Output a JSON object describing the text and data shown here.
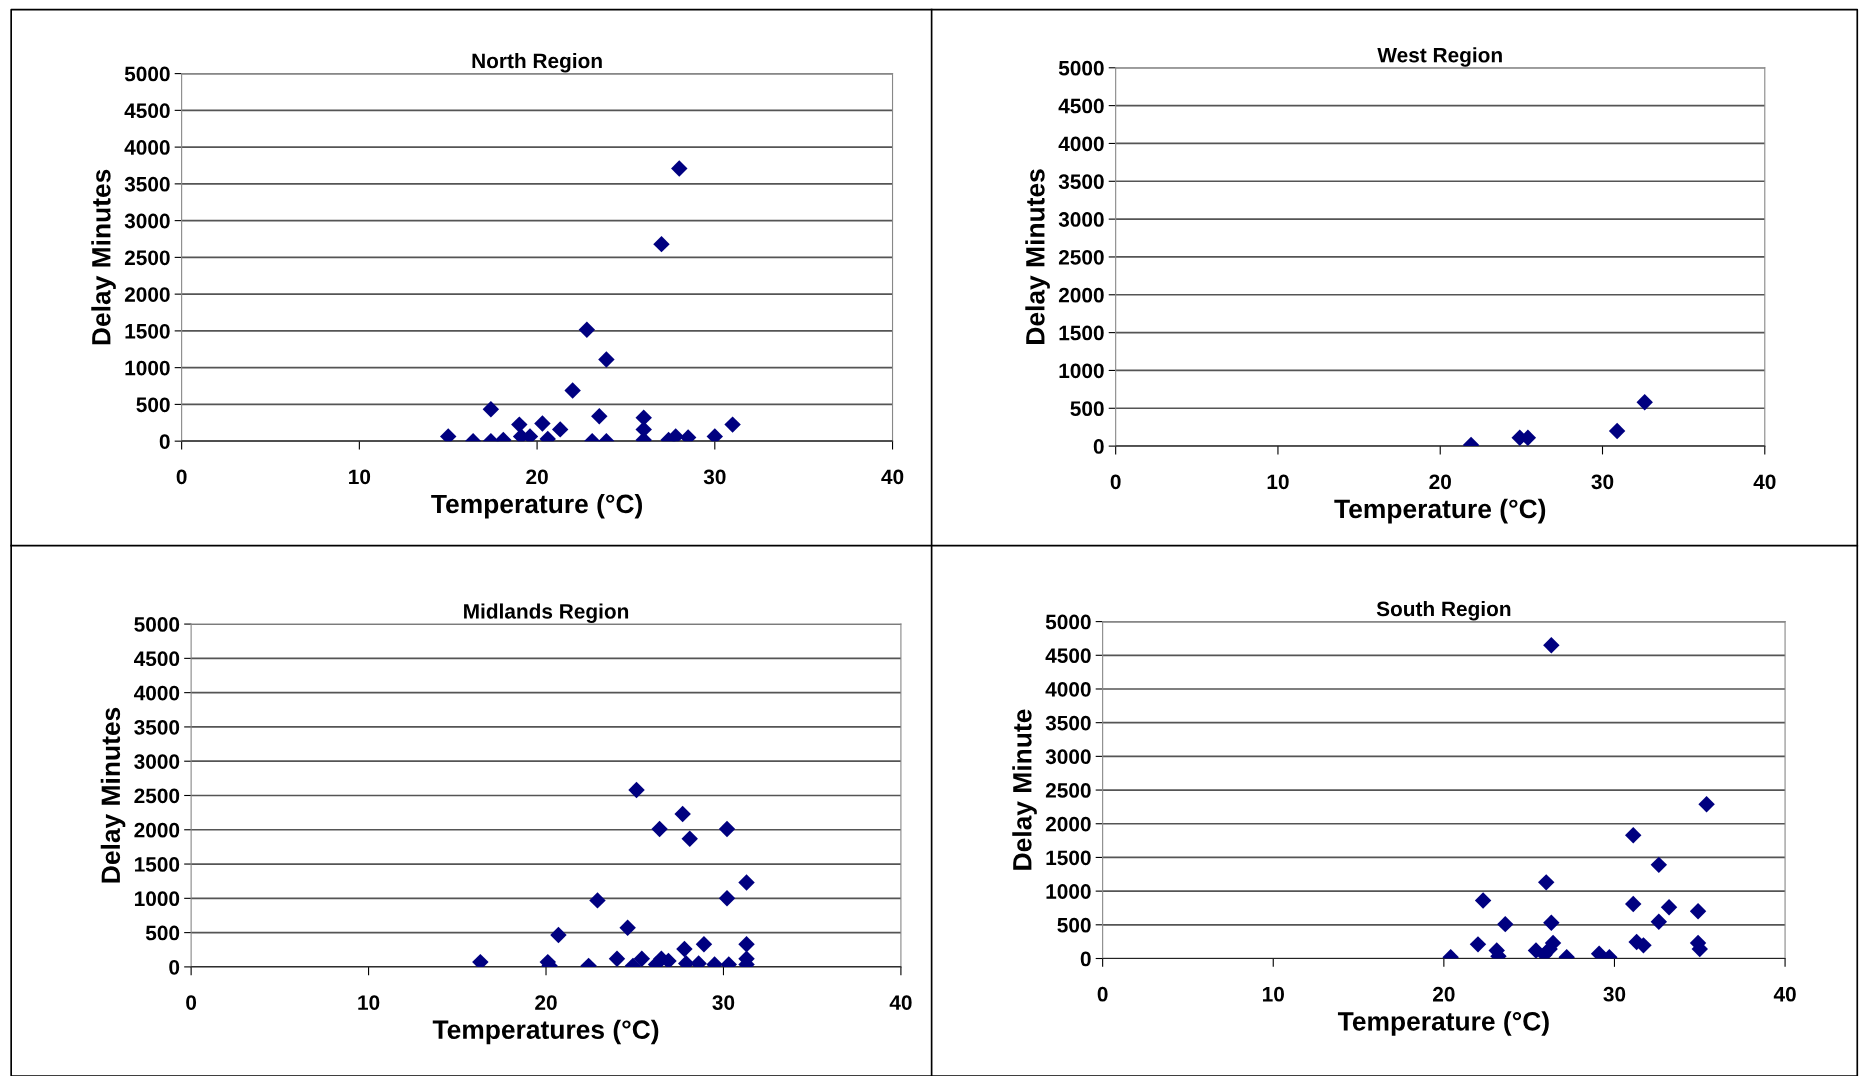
{
  "chart_data": [
    {
      "type": "scatter",
      "title": "North Region",
      "xlabel": "Temperature (°C)",
      "ylabel": "Delay Minutes",
      "color": "#000080",
      "marker": "diamond",
      "grid": "y",
      "xlim": [
        0,
        40
      ],
      "ylim": [
        0,
        5000
      ],
      "xticks": [
        0,
        10,
        20,
        30,
        40
      ],
      "yticks": [
        0,
        500,
        1000,
        1500,
        2000,
        2500,
        3000,
        3500,
        4000,
        4500,
        5000
      ],
      "x": [
        15.0,
        16.4,
        17.4,
        17.4,
        18.1,
        19.0,
        19.1,
        19.6,
        20.3,
        20.6,
        21.3,
        22.0,
        22.8,
        23.1,
        23.5,
        23.9,
        23.9,
        26.0,
        26.0,
        26.0,
        27.0,
        27.4,
        27.8,
        28.0,
        28.5,
        30.0,
        31.0
      ],
      "values": [
        65,
        0,
        0,
        435,
        15,
        225,
        65,
        65,
        240,
        30,
        160,
        690,
        1515,
        0,
        340,
        1110,
        0,
        320,
        160,
        15,
        2680,
        15,
        65,
        3710,
        50,
        65,
        225
      ]
    },
    {
      "type": "scatter",
      "title": "West Region",
      "xlabel": "Temperature (°C)",
      "ylabel": "Delay Minutes",
      "color": "#000080",
      "marker": "diamond",
      "grid": "y",
      "xlim": [
        0,
        40
      ],
      "ylim": [
        0,
        5000
      ],
      "xticks": [
        0,
        10,
        20,
        30,
        40
      ],
      "yticks": [
        0,
        500,
        1000,
        1500,
        2000,
        2500,
        3000,
        3500,
        4000,
        4500,
        5000
      ],
      "x": [
        21.9,
        24.9,
        25.4,
        30.9,
        32.6
      ],
      "values": [
        15,
        110,
        110,
        200,
        580
      ]
    },
    {
      "type": "scatter",
      "title": "Midlands Region",
      "xlabel": "Temperatures (°C)",
      "ylabel": "Delay Minutes",
      "color": "#000080",
      "marker": "diamond",
      "grid": "y",
      "xlim": [
        0,
        40
      ],
      "ylim": [
        0,
        5000
      ],
      "xticks": [
        0,
        10,
        20,
        30,
        40
      ],
      "yticks": [
        0,
        500,
        1000,
        1500,
        2000,
        2500,
        3000,
        3500,
        4000,
        4500,
        5000
      ],
      "x": [
        16.3,
        20.1,
        20.2,
        20.7,
        22.4,
        22.9,
        24.0,
        24.6,
        24.9,
        25.4,
        25.1,
        26.2,
        26.4,
        26.5,
        26.9,
        27.7,
        27.8,
        27.9,
        28.1,
        28.6,
        28.9,
        29.5,
        30.2,
        30.2,
        30.3,
        31.3,
        31.3,
        31.3,
        31.3
      ],
      "values": [
        70,
        70,
        15,
        465,
        15,
        970,
        120,
        570,
        15,
        120,
        2580,
        35,
        2010,
        120,
        85,
        2230,
        260,
        50,
        1870,
        50,
        330,
        35,
        2010,
        1000,
        35,
        1230,
        330,
        120,
        35
      ]
    },
    {
      "type": "scatter",
      "title": "South Region",
      "xlabel": "Temperature (°C)",
      "ylabel": "Delay Minute",
      "color": "#000080",
      "marker": "diamond",
      "grid": "y",
      "xlim": [
        0,
        40
      ],
      "ylim": [
        0,
        5000
      ],
      "xticks": [
        0,
        10,
        20,
        30,
        40
      ],
      "yticks": [
        0,
        500,
        1000,
        1500,
        2000,
        2500,
        3000,
        3500,
        4000,
        4500,
        5000
      ],
      "x": [
        20.4,
        22.0,
        22.3,
        23.1,
        23.2,
        23.6,
        25.4,
        25.9,
        26.0,
        26.3,
        26.3,
        26.4,
        26.2,
        27.2,
        29.1,
        29.7,
        31.1,
        31.1,
        31.3,
        31.7,
        32.6,
        32.6,
        33.2,
        34.9,
        34.9,
        35.0,
        35.4
      ],
      "values": [
        20,
        210,
        860,
        120,
        35,
        510,
        120,
        55,
        1130,
        4650,
        530,
        230,
        140,
        20,
        70,
        20,
        1830,
        810,
        245,
        195,
        1390,
        545,
        760,
        700,
        230,
        140,
        2290
      ]
    }
  ]
}
